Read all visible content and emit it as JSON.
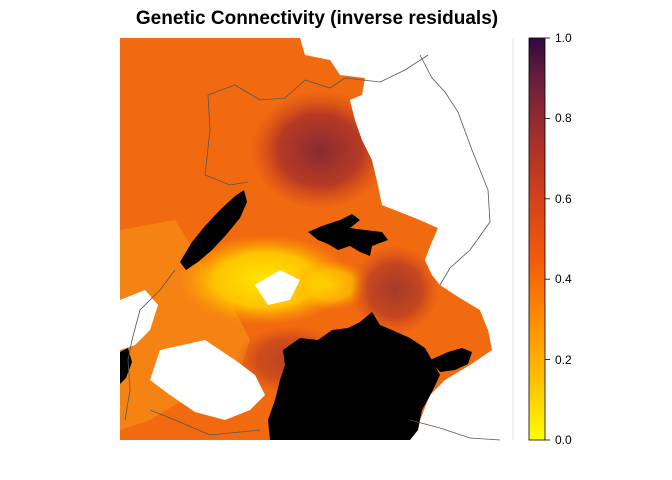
{
  "title": "Genetic Connectivity (inverse residuals)",
  "legend": {
    "ticks": [
      {
        "value": 0.0,
        "label": "0.0"
      },
      {
        "value": 0.2,
        "label": "0.2"
      },
      {
        "value": 0.4,
        "label": "0.4"
      },
      {
        "value": 0.6,
        "label": "0.6"
      },
      {
        "value": 0.8,
        "label": "0.8"
      },
      {
        "value": 1.0,
        "label": "1.0"
      }
    ],
    "min": 0.0,
    "max": 1.0,
    "palette": [
      "#ffff00",
      "#ffc000",
      "#ff8c00",
      "#f25a0a",
      "#d3421c",
      "#a4302a",
      "#6a1e3c",
      "#2e0a40"
    ]
  },
  "map": {
    "background_color": "#ffffff",
    "water_color": "#000000",
    "dominant_color": "#f06010",
    "low_value_color": "#ffd400",
    "high_value_color": "#8a2a30"
  }
}
